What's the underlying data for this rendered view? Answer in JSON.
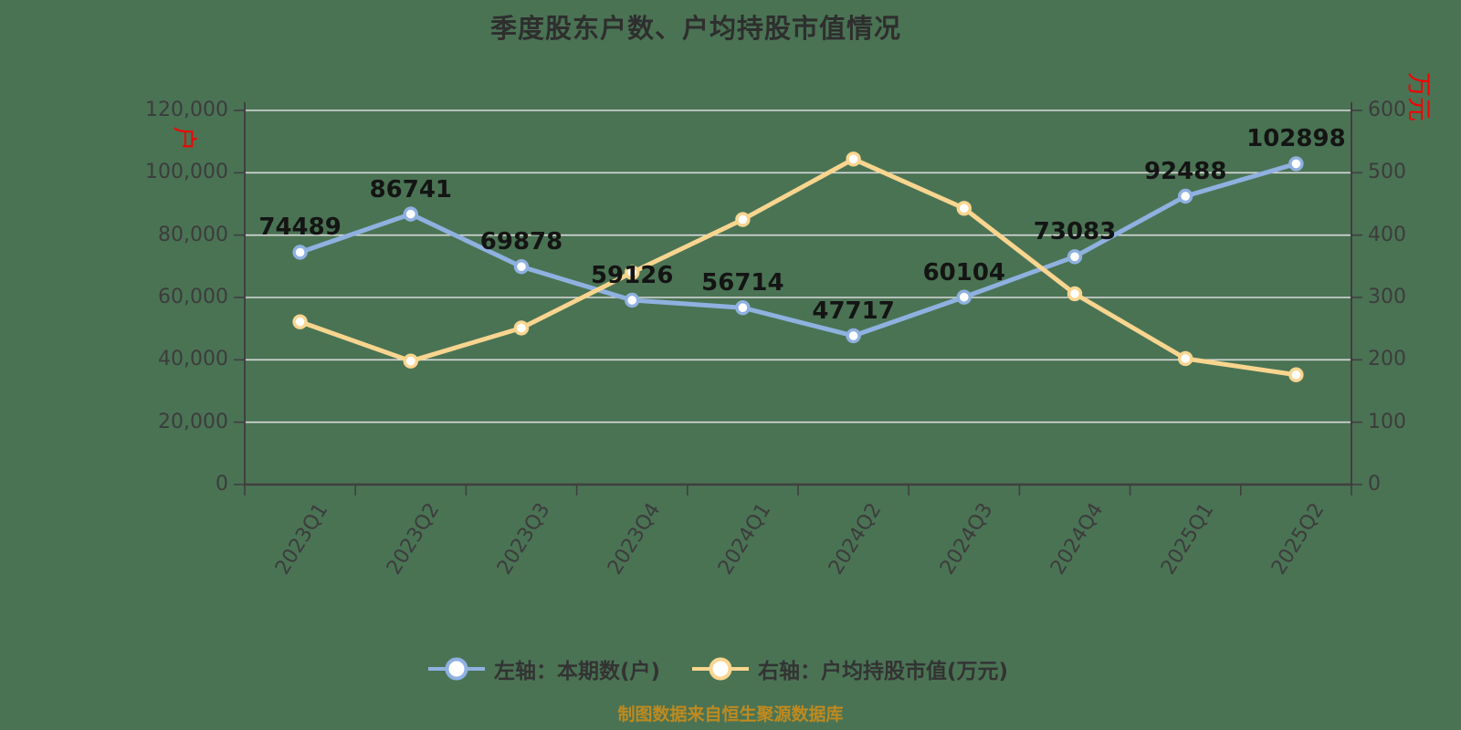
{
  "title": "季度股东户数、户均持股市值情况",
  "source_note": "制图数据来自恒生聚源数据库",
  "colors": {
    "background": "#4A7354",
    "series_left": "#8FB1E0",
    "series_right": "#F9D58F",
    "grid": "#D9D9D9",
    "axis": "#3F3F3F",
    "axis_unit": "#F40000",
    "data_label": "#141414",
    "source_note": "#BE8A1F"
  },
  "legend": {
    "items": [
      {
        "label": "左轴：本期数(户)",
        "marker": "line-circle-icon",
        "color": "#8FB1E0"
      },
      {
        "label": "右轴：户均持股市值(万元)",
        "marker": "line-circle-icon",
        "color": "#F9D58F"
      }
    ]
  },
  "chart_data": {
    "type": "line",
    "title": "季度股东户数、户均持股市值情况",
    "categories": [
      "2023Q1",
      "2023Q2",
      "2023Q3",
      "2023Q4",
      "2024Q1",
      "2024Q2",
      "2024Q3",
      "2024Q4",
      "2025Q1",
      "2025Q2"
    ],
    "series": [
      {
        "name": "左轴：本期数(户)",
        "axis": "left",
        "color": "#8FB1E0",
        "values": [
          74489,
          86741,
          69878,
          59126,
          56714,
          47717,
          60104,
          73083,
          92488,
          102898
        ],
        "show_point_labels": true
      },
      {
        "name": "右轴：户均持股市值(万元)",
        "axis": "right",
        "color": "#F9D58F",
        "values": [
          261,
          198,
          251,
          340,
          425,
          522,
          443,
          306,
          202,
          176
        ],
        "show_point_labels": false
      }
    ],
    "left_axis": {
      "min": 0,
      "max": 120000,
      "step": 20000,
      "unit": "户",
      "tick_labels": [
        "120,000",
        "100,000",
        "80,000",
        "60,000",
        "40,000",
        "20,000",
        "0"
      ]
    },
    "right_axis": {
      "min": 0,
      "max": 600,
      "step": 100,
      "unit": "万元",
      "tick_labels": [
        "600",
        "500",
        "400",
        "300",
        "200",
        "100",
        "0"
      ]
    },
    "grid": true,
    "legend_position": "bottom"
  }
}
